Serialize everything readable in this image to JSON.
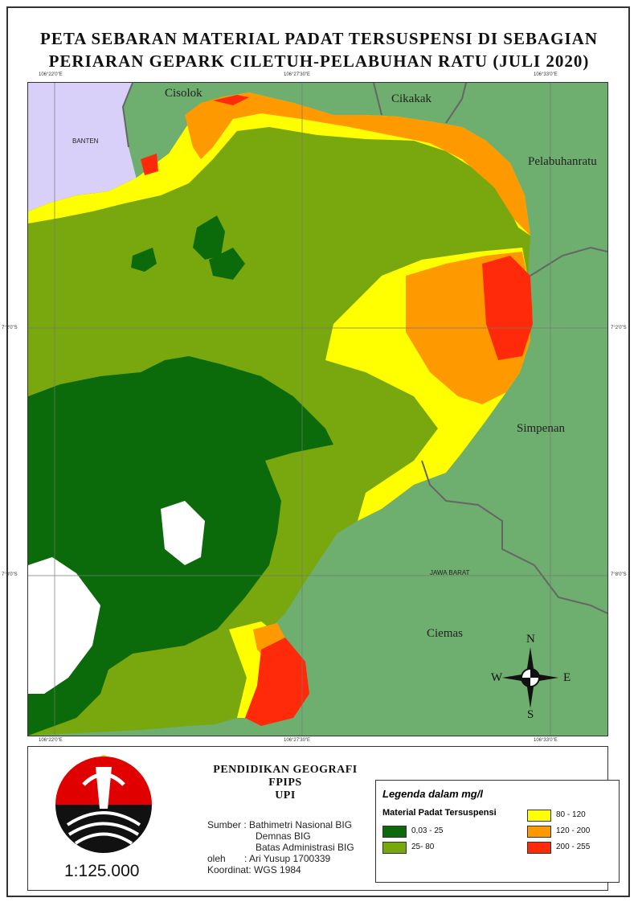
{
  "title": {
    "line1": "PETA SEBARAN MATERIAL PADAT TERSUSPENSI DI SEBAGIAN",
    "line2": "PERIARAN GEPARK CILETUH-PELABUHAN RATU (JULI 2020)"
  },
  "coords": {
    "top_left": "106°22'0\"E",
    "top_mid": "106°27'30\"E",
    "top_right": "106°33'0\"E",
    "bottom_left": "106°22'0\"E",
    "bottom_mid": "106°27'30\"E",
    "bottom_right": "106°33'0\"E",
    "left_upper": "7°2'0\"S",
    "left_lower": "7°8'0\"S",
    "right_upper": "7°2'0\"S",
    "right_lower": "7°8'0\"S"
  },
  "places": {
    "cisolok": "Cisolok",
    "cikakak": "Cikakak",
    "pelabuhanratu": "Pelabuhanratu",
    "banten": "BANTEN",
    "simpenan": "Simpenan",
    "jawa_barat": "JAWA BARAT",
    "ciemas": "Ciemas"
  },
  "compass": {
    "n": "N",
    "s": "S",
    "e": "E",
    "w": "W"
  },
  "org": {
    "line1": "PENDIDIKAN GEOGRAFI",
    "line2": "FPIPS",
    "line3": "UPI"
  },
  "meta": {
    "sumber_label": "Sumber",
    "sumber_1": ": Bathimetri Nasional BIG",
    "sumber_2": "Demnas BIG",
    "sumber_3": "Batas Administrasi BIG",
    "oleh_label": "oleh",
    "oleh_value": ": Ari Yusup 1700339",
    "koordinat": "Koordinat: WGS 1984"
  },
  "scale": "1:125.000",
  "legend": {
    "title": "Legenda dalam mg/l",
    "subtitle": "Material Padat Tersuspensi",
    "classes": [
      {
        "label": "0,03 - 25",
        "color": "#0b6b0b"
      },
      {
        "label": "25- 80",
        "color": "#78a80e"
      },
      {
        "label": "80 - 120",
        "color": "#ffff00"
      },
      {
        "label": "120 - 200",
        "color": "#ff9900"
      },
      {
        "label": "200 - 255",
        "color": "#ff2a0a"
      }
    ]
  },
  "colors": {
    "land": "#6eae6e",
    "banten_land": "#d8d0f8",
    "boundary": "#666666"
  }
}
